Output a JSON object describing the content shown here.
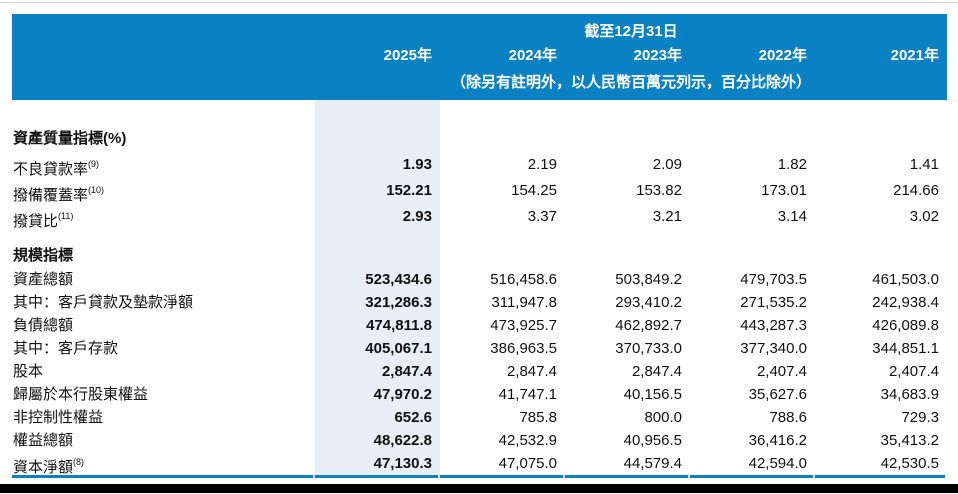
{
  "colors": {
    "header_blue": "#0981c3",
    "highlight_column": "#e9eef6",
    "text": "#111111"
  },
  "header": {
    "caption": "截至12月31日",
    "years": [
      "2025年",
      "2024年",
      "2023年",
      "2022年",
      "2021年"
    ],
    "note": "（除另有註明外，以人民幣百萬元列示，百分比除外）"
  },
  "sections": [
    {
      "heading": "資產質量指標(%)",
      "rows": [
        {
          "label": "不良貸款率",
          "sup": "(9)",
          "values": [
            "1.93",
            "2.19",
            "2.09",
            "1.82",
            "1.41"
          ]
        },
        {
          "label": "撥備覆蓋率",
          "sup": "(10)",
          "values": [
            "152.21",
            "154.25",
            "153.82",
            "173.01",
            "214.66"
          ]
        },
        {
          "label": "撥貸比",
          "sup": "(11)",
          "values": [
            "2.93",
            "3.37",
            "3.21",
            "3.14",
            "3.02"
          ]
        }
      ]
    },
    {
      "heading": "規模指標",
      "rows": [
        {
          "label": "資產總額",
          "values": [
            "523,434.6",
            "516,458.6",
            "503,849.2",
            "479,703.5",
            "461,503.0"
          ]
        },
        {
          "label": "其中：客戶貸款及墊款淨額",
          "values": [
            "321,286.3",
            "311,947.8",
            "293,410.2",
            "271,535.2",
            "242,938.4"
          ]
        },
        {
          "label": "負債總額",
          "values": [
            "474,811.8",
            "473,925.7",
            "462,892.7",
            "443,287.3",
            "426,089.8"
          ]
        },
        {
          "label": "其中：客戶存款",
          "values": [
            "405,067.1",
            "386,963.5",
            "370,733.0",
            "377,340.0",
            "344,851.1"
          ]
        },
        {
          "label": "股本",
          "values": [
            "2,847.4",
            "2,847.4",
            "2,847.4",
            "2,407.4",
            "2,407.4"
          ]
        },
        {
          "label": "歸屬於本行股東權益",
          "values": [
            "47,970.2",
            "41,747.1",
            "40,156.5",
            "35,627.6",
            "34,683.9"
          ]
        },
        {
          "label": "非控制性權益",
          "values": [
            "652.6",
            "785.8",
            "800.0",
            "788.6",
            "729.3"
          ]
        },
        {
          "label": "權益總額",
          "values": [
            "48,622.8",
            "42,532.9",
            "40,956.5",
            "36,416.2",
            "35,413.2"
          ]
        },
        {
          "label": "資本淨額",
          "sup": "(8)",
          "values": [
            "47,130.3",
            "47,075.0",
            "44,579.4",
            "42,594.0",
            "42,530.5"
          ]
        }
      ]
    }
  ]
}
